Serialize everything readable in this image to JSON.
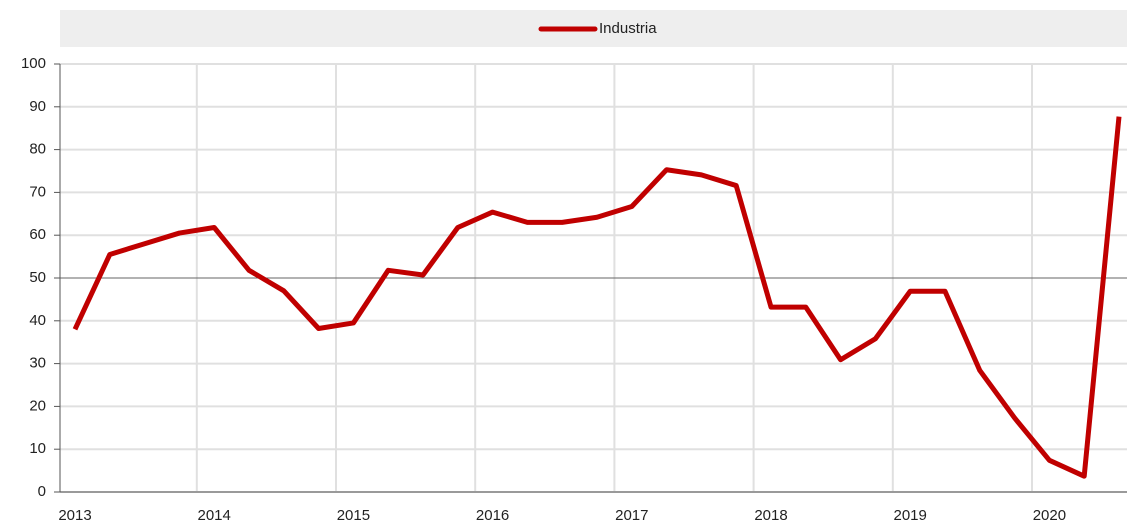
{
  "chart_data": {
    "type": "line",
    "categories": [
      "2013",
      null,
      null,
      null,
      "2014",
      null,
      null,
      null,
      "2015",
      null,
      null,
      null,
      "2016",
      null,
      null,
      null,
      "2017",
      null,
      null,
      null,
      "2018",
      null,
      null,
      null,
      "2019",
      null,
      null,
      null,
      "2020",
      null,
      null
    ],
    "series": [
      {
        "name": "Industria",
        "color": "#c00000",
        "values": [
          38,
          55.5,
          58,
          60.5,
          61.8,
          51.8,
          47,
          38.2,
          39.5,
          51.8,
          50.7,
          61.8,
          65.4,
          63,
          63,
          64.2,
          66.7,
          75.3,
          74.1,
          71.6,
          43.2,
          43.2,
          30.9,
          35.8,
          46.9,
          46.9,
          28.4,
          17.3,
          7.4,
          3.7,
          87.7
        ]
      }
    ],
    "ylim": [
      0,
      100
    ],
    "yticks": [
      0,
      10,
      20,
      30,
      40,
      50,
      60,
      70,
      80,
      90,
      100
    ],
    "grid": true,
    "reference_line": 50,
    "legend": "top"
  }
}
